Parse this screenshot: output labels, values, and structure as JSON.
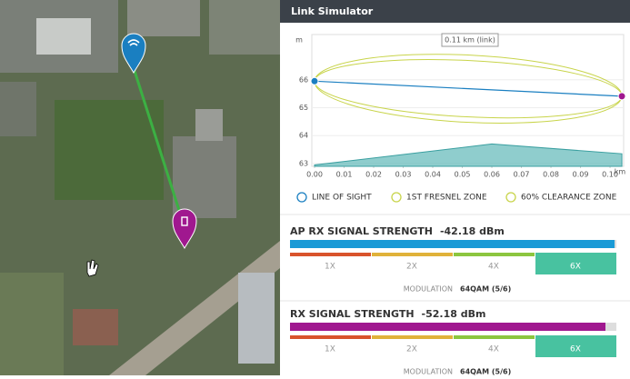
{
  "panel": {
    "title": "Link Simulator"
  },
  "profile": {
    "y_unit": "m",
    "x_unit": "km",
    "link_label": "0.11 km (link)",
    "xlim": [
      0,
      0.1046
    ],
    "ylim": [
      62.9,
      67.62
    ],
    "xticks": [
      {
        "value": 0,
        "label": "0.00"
      },
      0.01,
      0.02,
      0.03,
      0.04,
      0.05,
      0.06,
      0.07,
      0.08,
      0.09,
      {
        "value": 0.1,
        "label": "0.10"
      }
    ],
    "yticks": [
      63,
      64,
      65,
      66
    ],
    "line_of_sight": {
      "x": [
        0,
        0.104
      ],
      "y": [
        65.95,
        65.41
      ]
    },
    "terrain": {
      "x": [
        0,
        0.06,
        0.104
      ],
      "y": [
        62.95,
        63.7,
        63.35
      ]
    }
  },
  "legend": [
    "LINE OF SIGHT",
    "1ST FRESNEL ZONE",
    "60% CLEARANCE ZONE"
  ],
  "signals": [
    {
      "label": "AP RX SIGNAL STRENGTH",
      "value": "-42.18 dBm",
      "rates": [
        "1X",
        "2X",
        "4X",
        "6X"
      ],
      "modulation_label": "MODULATION",
      "modulation": "64QAM (5/6)"
    },
    {
      "label": "RX SIGNAL STRENGTH",
      "value": "-52.18 dBm",
      "rates": [
        "1X",
        "2X",
        "4X",
        "6X"
      ],
      "modulation_label": "MODULATION",
      "modulation": "64QAM (5/6)"
    }
  ]
}
